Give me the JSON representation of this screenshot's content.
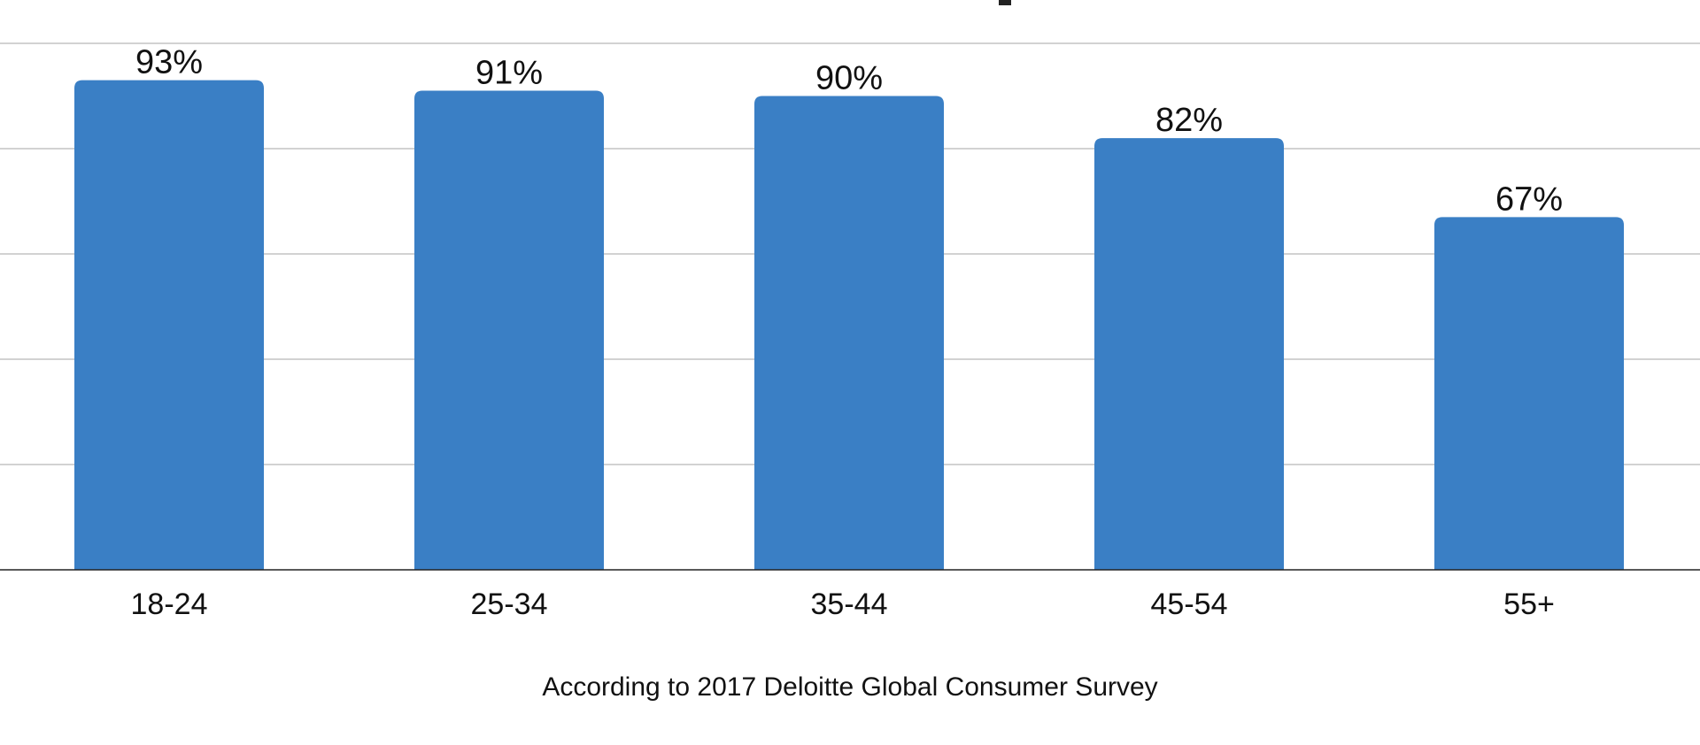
{
  "chart_data": {
    "type": "bar",
    "categories": [
      "18-24",
      "25-34",
      "35-44",
      "45-54",
      "55+"
    ],
    "values": [
      93,
      91,
      90,
      82,
      67
    ],
    "value_labels": [
      "93%",
      "91%",
      "90%",
      "82%",
      "67%"
    ],
    "ylim": [
      0,
      100
    ],
    "grid": true,
    "bar_color": "#3A7FC5",
    "note": "According to 2017 Deloitte Global Consumer Survey"
  }
}
